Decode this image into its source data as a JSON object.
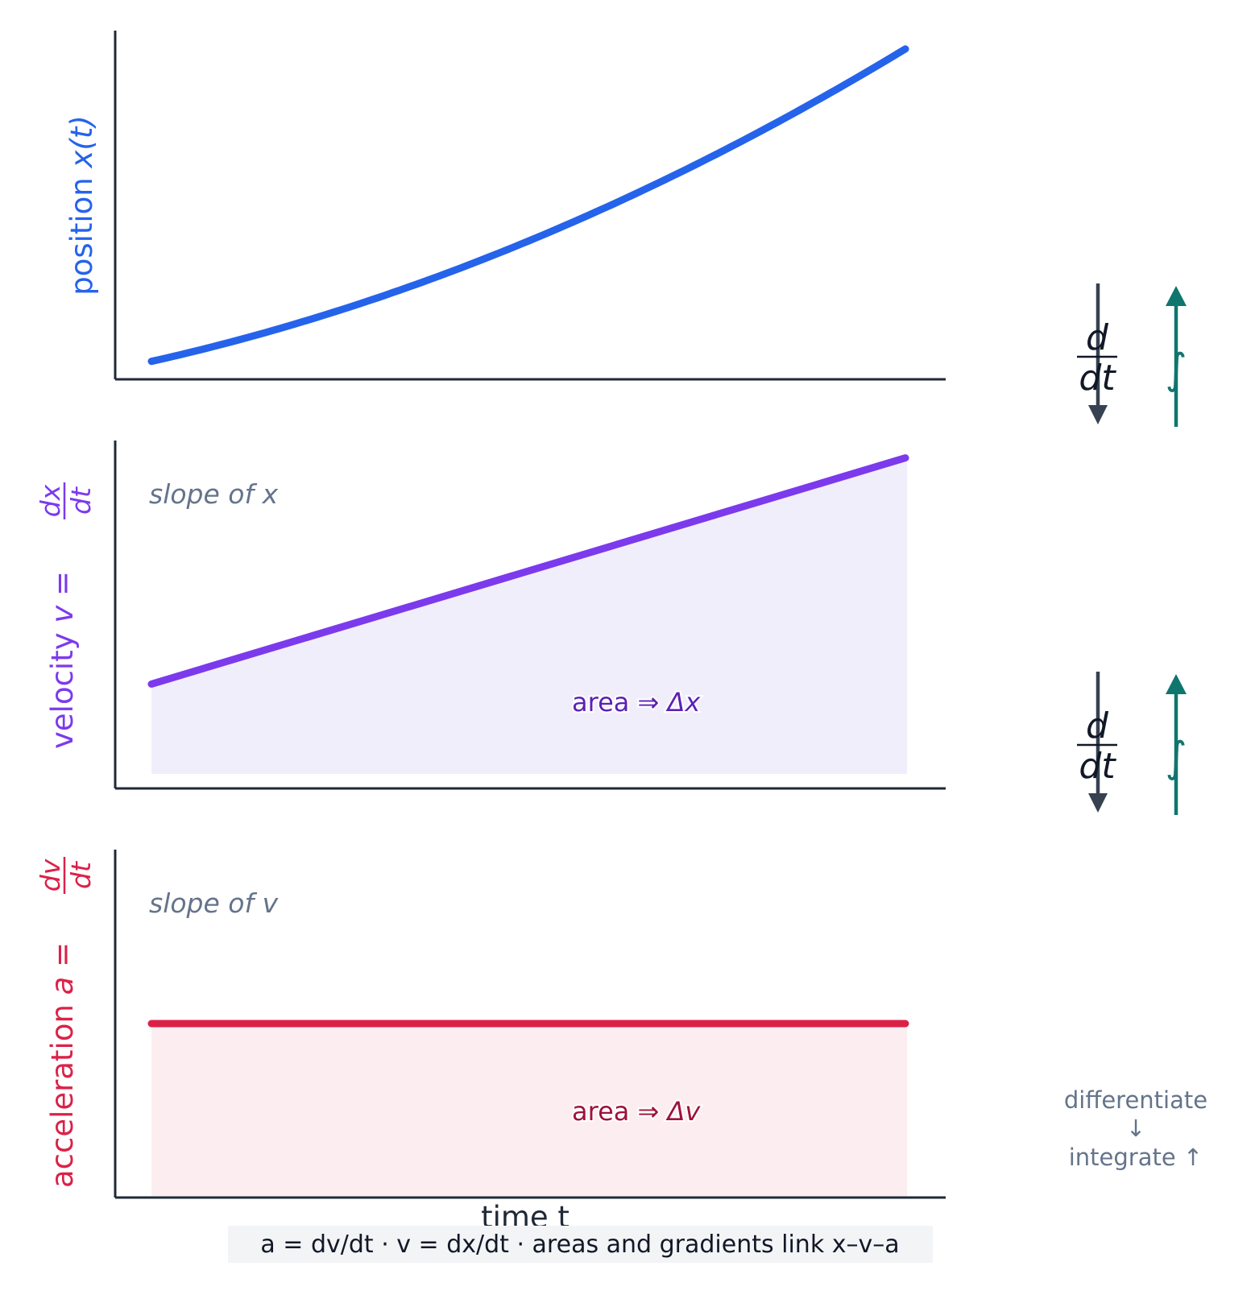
{
  "colors": {
    "position": "#2563eb",
    "velocity": "#7c3aed",
    "velocity_fill": "#f1eefc",
    "velocity_text": "#5b21b6",
    "acceleration": "#dc2148",
    "acceleration_fill": "#fbedf0",
    "acceleration_text": "#9f1239",
    "axis": "#1f2937",
    "muted": "#64748b",
    "diff_arrow": "#374151",
    "int_arrow": "#0f766e",
    "caption_bg": "#f3f4f6"
  },
  "labels": {
    "position_prefix": "position ",
    "position_var": "x(t)",
    "velocity_prefix": "velocity ",
    "velocity_var": "v = ",
    "velocity_num": "dx",
    "velocity_den": "dt",
    "acceleration_prefix": "acceleration ",
    "acceleration_var": "a = ",
    "acceleration_num": "dv",
    "acceleration_den": "dt",
    "slope_of_x": "slope of x",
    "slope_of_v": "slope of v",
    "area_word": "area",
    "area_arrow": " ⇒ ",
    "delta_x": "Δx",
    "delta_v": "Δv",
    "time": "time  t",
    "op_num": "d",
    "op_den": "dt",
    "integral": "∫",
    "legend_line1": "differentiate",
    "legend_line2": "↓",
    "legend_line3": "integrate ↑",
    "caption": "a = dv/dt  ·  v = dx/dt  ·  areas and gradients link x–v–a"
  },
  "chart_data": [
    {
      "type": "line",
      "series": [
        {
          "name": "position x(t)",
          "x": [
            0,
            0.25,
            0.5,
            0.75,
            1.0
          ],
          "y": [
            0.05,
            0.2,
            0.4,
            0.64,
            0.95
          ]
        }
      ],
      "xlabel": "",
      "ylabel": "position x(t)",
      "ylim": [
        0,
        1
      ]
    },
    {
      "type": "area",
      "series": [
        {
          "name": "velocity v = dx/dt",
          "x": [
            0,
            1
          ],
          "y": [
            0.3,
            0.95
          ]
        }
      ],
      "annotations": [
        "slope of x",
        "area ⇒ Δx"
      ],
      "xlabel": "",
      "ylabel": "velocity v = dx/dt",
      "ylim": [
        0,
        1
      ]
    },
    {
      "type": "area",
      "series": [
        {
          "name": "acceleration a = dv/dt",
          "x": [
            0,
            1
          ],
          "y": [
            0.5,
            0.5
          ]
        }
      ],
      "annotations": [
        "slope of v",
        "area ⇒ Δv"
      ],
      "xlabel": "time t",
      "ylabel": "acceleration a = dv/dt",
      "ylim": [
        0,
        1
      ]
    }
  ]
}
